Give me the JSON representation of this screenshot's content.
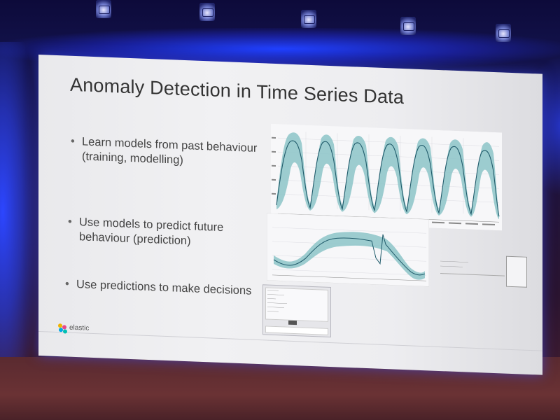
{
  "slide": {
    "title": "Anomaly Detection in Time Series Data",
    "bullets": [
      {
        "text": "Learn models from past behaviour (training, modelling)"
      },
      {
        "text": "Use models to predict future behaviour (prediction)"
      },
      {
        "text": "Use predictions to make decisions"
      }
    ],
    "logo": {
      "text": "elastic"
    }
  },
  "colors": {
    "band": "#8cc4c8",
    "line": "#1f5a6a",
    "slide_bg": "#efeff2",
    "glow": "#2c46ff"
  },
  "icons": [
    "ceiling-light-icon",
    "elastic-logo-icon"
  ]
}
